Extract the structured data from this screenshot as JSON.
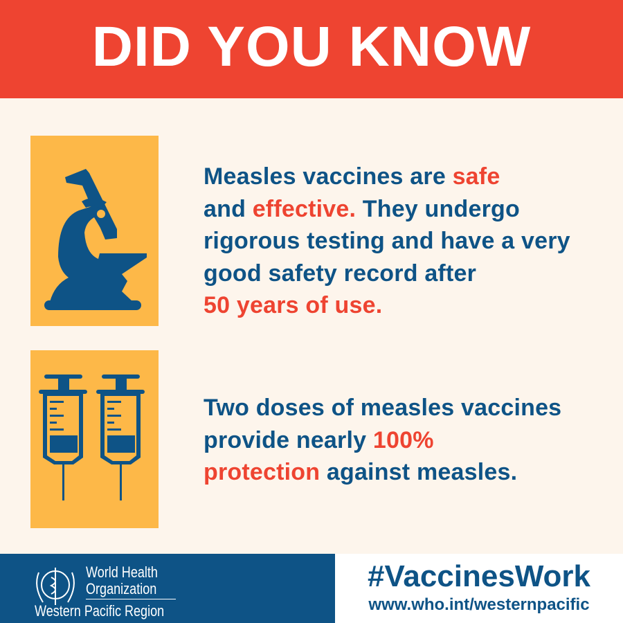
{
  "header": {
    "title": "DID YOU KNOW"
  },
  "fact1": {
    "icon": "microscope-icon",
    "parts": [
      "Measles vaccines are ",
      "safe",
      "and ",
      "effective.",
      " They undergo rigorous testing and have a very good safety record after ",
      "50 years of use."
    ]
  },
  "fact2": {
    "icon": "syringe-icon",
    "parts": [
      "Two doses of measles vaccines provide nearly ",
      "100%",
      "protection",
      " against measles."
    ]
  },
  "footer": {
    "org_line1": "World Health",
    "org_line2": "Organization",
    "region": "Western Pacific Region",
    "hashtag": "#VaccinesWork",
    "url": "www.who.int/westernpacific"
  },
  "colors": {
    "header": "#ee4431",
    "text": "#0e5386",
    "highlight": "#ee4431",
    "icon_bg": "#fdb848",
    "background": "#fdf5ec"
  }
}
